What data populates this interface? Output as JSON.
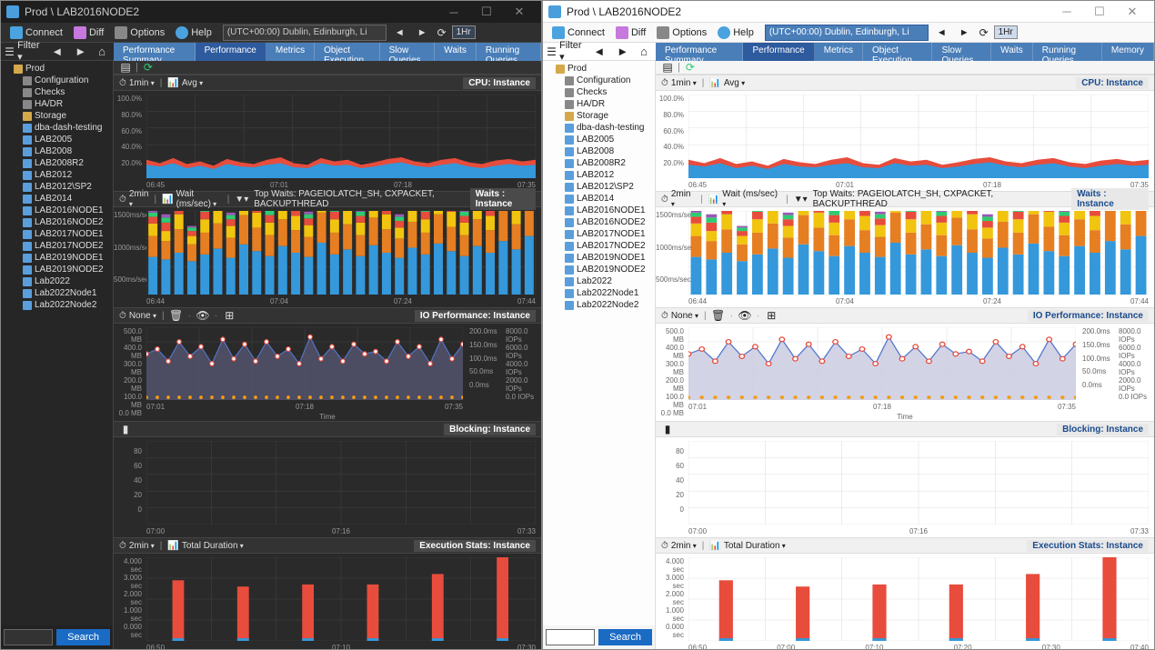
{
  "shared": {
    "titlebar_path": "Prod \\ LAB2016NODE2",
    "toolbar": {
      "connect": "Connect",
      "diff": "Diff",
      "options": "Options",
      "help": "Help"
    },
    "timezone": "(UTC+00:00) Dublin, Edinburgh, Li",
    "hr": "1Hr",
    "filter_label": "Filter ▾",
    "search_btn": "Search",
    "tree": {
      "root": "Prod",
      "config": "Configuration",
      "checks": "Checks",
      "hadr": "HA/DR",
      "storage": "Storage",
      "items": [
        "dba-dash-testing",
        "LAB2005",
        "LAB2008",
        "LAB2008R2",
        "LAB2012",
        "LAB2012\\SP2",
        "LAB2014",
        "LAB2016NODE1",
        "LAB2016NODE2",
        "LAB2017NODE1",
        "LAB2017NODE2",
        "LAB2019NODE1",
        "LAB2019NODE2",
        "Lab2022",
        "Lab2022Node1",
        "Lab2022Node2"
      ]
    }
  },
  "left": {
    "tabs": [
      "Performance Summary",
      "Performance",
      "Metrics",
      "Object Execution",
      "Slow Queries",
      "Waits",
      "Running Queries"
    ],
    "active_tab": 1
  },
  "right": {
    "tabs": [
      "Performance Summary",
      "Performance",
      "Metrics",
      "Object Execution",
      "Slow Queries",
      "Waits",
      "Running Queries",
      "Memory"
    ],
    "active_tab": 1
  },
  "panels": {
    "cpu": {
      "title": "CPU: Instance",
      "ctl_min": "1min",
      "ctl_agg": "Avg",
      "y": [
        "100.0%",
        "80.0%",
        "60.0%",
        "40.0%",
        "20.0%"
      ],
      "x": [
        "06:45",
        "07:01",
        "07:18",
        "07:35"
      ],
      "series_red": [
        22,
        18,
        24,
        17,
        20,
        15,
        23,
        19,
        17,
        22,
        25,
        18,
        16,
        24,
        20,
        22,
        16,
        19,
        23,
        25,
        20,
        18,
        22,
        24,
        19,
        17,
        21,
        23,
        20,
        22
      ],
      "series_blue": [
        16,
        14,
        18,
        12,
        15,
        11,
        17,
        14,
        13,
        16,
        18,
        13,
        12,
        18,
        15,
        16,
        12,
        14,
        17,
        19,
        15,
        13,
        16,
        18,
        14,
        12,
        15,
        17,
        15,
        16
      ],
      "col_red": "#e74c3c",
      "col_blue": "#3498db"
    },
    "waits": {
      "title": "Waits : Instance",
      "ctl_min": "2min",
      "ctl_wait": "Wait (ms/sec)",
      "top": "Top Waits: PAGEIOLATCH_SH, CXPACKET, BACKUPTHREAD",
      "y": [
        "1500ms/sec",
        "1000ms/sec",
        "500ms/sec"
      ],
      "x": [
        "06:44",
        "07:04",
        "07:24",
        "07:44"
      ],
      "bars": [
        [
          45,
          25,
          15,
          8,
          5,
          3
        ],
        [
          42,
          22,
          12,
          10,
          6,
          4
        ],
        [
          50,
          28,
          18,
          8,
          7,
          5
        ],
        [
          40,
          20,
          10,
          6,
          4,
          2
        ],
        [
          48,
          26,
          16,
          9,
          5,
          3
        ],
        [
          55,
          30,
          20,
          12,
          8,
          6
        ],
        [
          44,
          24,
          14,
          8,
          5,
          3
        ],
        [
          60,
          35,
          22,
          14,
          10,
          7
        ],
        [
          52,
          28,
          18,
          10,
          6,
          4
        ],
        [
          46,
          25,
          15,
          9,
          6,
          3
        ],
        [
          58,
          32,
          20,
          12,
          8,
          5
        ],
        [
          50,
          27,
          17,
          10,
          6,
          4
        ],
        [
          45,
          24,
          14,
          8,
          5,
          3
        ],
        [
          62,
          36,
          24,
          15,
          10,
          7
        ],
        [
          48,
          26,
          16,
          9,
          5,
          3
        ],
        [
          54,
          30,
          19,
          11,
          7,
          5
        ],
        [
          46,
          25,
          15,
          8,
          5,
          3
        ],
        [
          59,
          33,
          21,
          13,
          9,
          6
        ],
        [
          50,
          28,
          18,
          10,
          6,
          4
        ],
        [
          44,
          23,
          13,
          8,
          5,
          3
        ],
        [
          56,
          31,
          20,
          12,
          8,
          5
        ],
        [
          48,
          26,
          16,
          9,
          5,
          3
        ],
        [
          61,
          35,
          23,
          14,
          10,
          7
        ],
        [
          52,
          29,
          18,
          11,
          7,
          4
        ],
        [
          46,
          25,
          15,
          8,
          5,
          3
        ],
        [
          58,
          32,
          20,
          12,
          8,
          5
        ],
        [
          50,
          27,
          17,
          10,
          6,
          4
        ],
        [
          64,
          37,
          25,
          16,
          11,
          8
        ],
        [
          54,
          30,
          19,
          11,
          7,
          5
        ],
        [
          70,
          40,
          28,
          18,
          12,
          9
        ]
      ],
      "stack_colors": [
        "#3498db",
        "#e67e22",
        "#f1c40f",
        "#e74c3c",
        "#2ecc71",
        "#9b59b6"
      ]
    },
    "io": {
      "title": "IO Performance: Instance",
      "ctl_none": "None",
      "y": [
        "500.0 MB",
        "400.0 MB",
        "300.0 MB",
        "200.0 MB",
        "100.0 MB",
        "0.0 MB"
      ],
      "yr": [
        "200.0ms",
        "150.0ms",
        "100.0ms",
        "50.0ms",
        "0.0ms"
      ],
      "yr2": [
        "8000.0 IOPs",
        "6000.0 IOPs",
        "4000.0 IOPs",
        "2000.0 IOPs",
        "0.0 IOPs"
      ],
      "x": [
        "07:01",
        "07:18",
        "07:35"
      ],
      "xlabel": "Time",
      "line": [
        38,
        42,
        32,
        48,
        36,
        44,
        30,
        50,
        34,
        46,
        32,
        48,
        36,
        42,
        30,
        52,
        34,
        44,
        32,
        46,
        38,
        40,
        32,
        48,
        36,
        44,
        30,
        50,
        34,
        46
      ],
      "fill_color_dark": "#555570",
      "fill_color_light": "#c8c8e0",
      "line_color": "#5577cc",
      "dot_red": "#e74c3c",
      "dot_yellow": "#f39c12"
    },
    "block": {
      "title": "Blocking: Instance",
      "y": [
        "",
        "80",
        "60",
        "40",
        "20",
        "0"
      ],
      "x": [
        "07:00",
        "07:16",
        "07:33"
      ]
    },
    "exec": {
      "title": "Execution Stats: Instance",
      "ctl_min": "2min",
      "ctl_dur": "Total Duration",
      "y": [
        "4.000 sec",
        "3.000 sec",
        "2.000 sec",
        "1.000 sec",
        "0.000 sec"
      ],
      "x": [
        "06:50",
        "07:10",
        "07:30"
      ],
      "x_right": [
        "06:50",
        "07:00",
        "07:10",
        "07:20",
        "07:30",
        "07:40"
      ],
      "bars": [
        2.9,
        2.6,
        2.7,
        2.7,
        3.2,
        4.0
      ],
      "bar_color": "#e74c3c",
      "base_color": "#3498db"
    }
  },
  "colors": {
    "grid_dark": "#444",
    "grid_light": "#e0e0e0"
  }
}
